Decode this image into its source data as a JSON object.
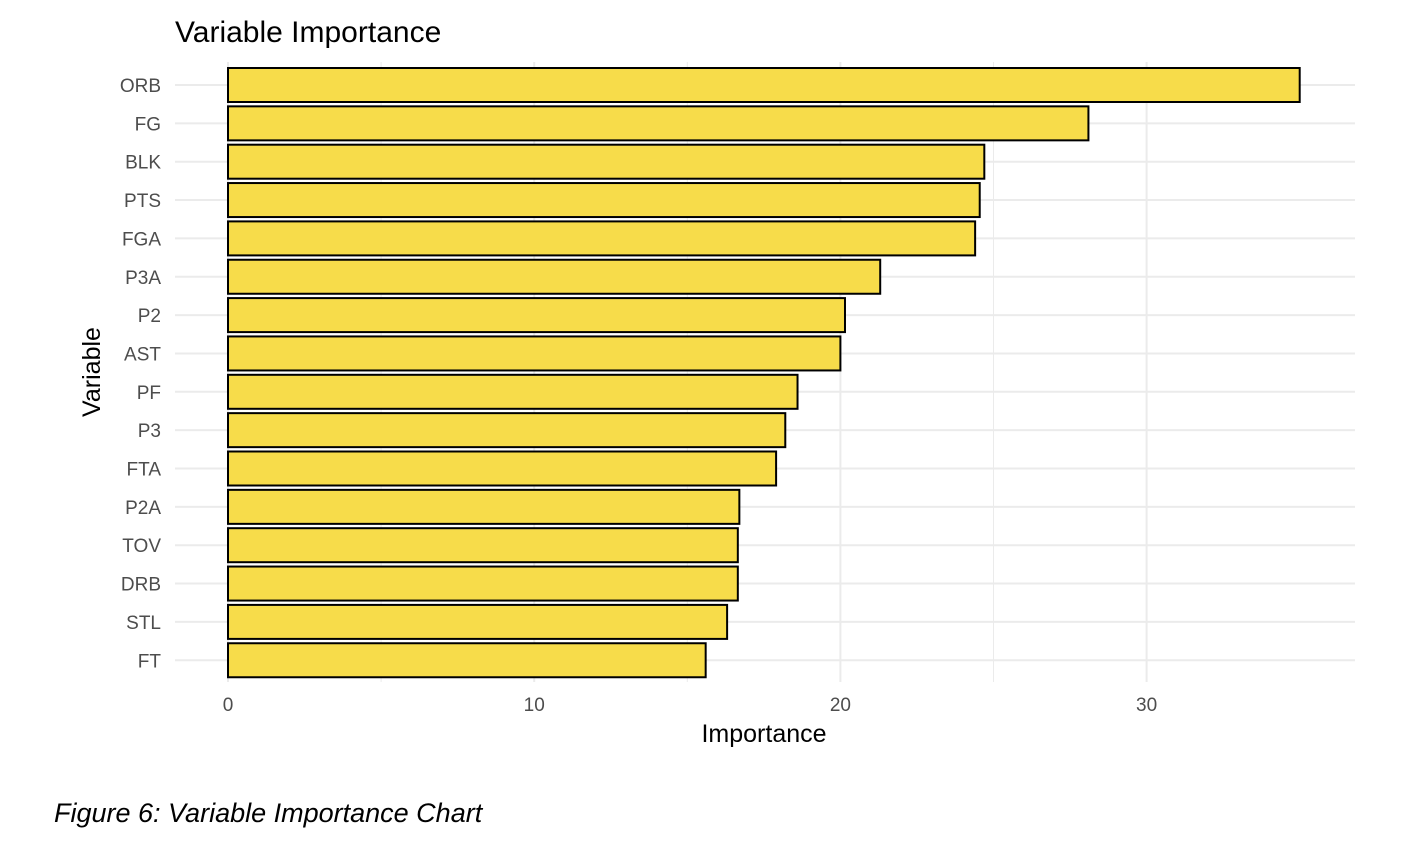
{
  "chart_data": {
    "type": "bar",
    "orientation": "horizontal",
    "title": "Variable Importance",
    "xlabel": "Importance",
    "ylabel": "Variable",
    "categories": [
      "ORB",
      "FG",
      "BLK",
      "PTS",
      "FGA",
      "P3A",
      "P2",
      "AST",
      "PF",
      "P3",
      "FTA",
      "P2A",
      "TOV",
      "DRB",
      "STL",
      "FT"
    ],
    "values": [
      35.0,
      28.1,
      24.7,
      24.55,
      24.4,
      21.3,
      20.15,
      20.0,
      18.6,
      18.2,
      17.9,
      16.7,
      16.65,
      16.65,
      16.3,
      15.6
    ],
    "xlim": [
      0,
      35
    ],
    "xticks": [
      0,
      10,
      20,
      30
    ],
    "bar_color": "#F7DC4A",
    "bar_outline": "#000000",
    "grid": true,
    "gridline_color": "#EBEBEB",
    "legend": "none"
  },
  "caption": "Figure 6: Variable Importance Chart"
}
